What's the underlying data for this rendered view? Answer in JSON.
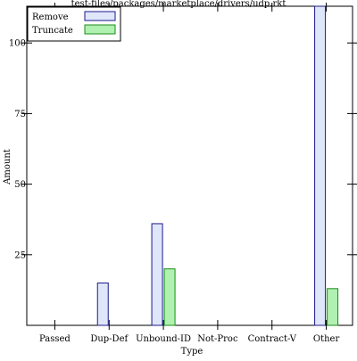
{
  "chart_data": {
    "type": "bar",
    "title": "test-files/packages/marketplace/drivers/udp.rkt",
    "xlabel": "Type",
    "ylabel": "Amount",
    "categories": [
      "Passed",
      "Dup-Def",
      "Unbound-ID",
      "Not-Proc",
      "Contract-V",
      "Other"
    ],
    "series": [
      {
        "name": "Remove",
        "values": [
          0,
          15,
          36,
          0,
          0,
          113
        ],
        "color": "#e0e6fa",
        "stroke": "#1a1a8c"
      },
      {
        "name": "Truncate",
        "values": [
          0,
          0,
          20,
          0,
          0,
          13
        ],
        "color": "#b0f0b0",
        "stroke": "#1a8c1a"
      }
    ],
    "yticks": [
      25,
      50,
      75,
      100
    ],
    "ylim": [
      0,
      113
    ],
    "legend_position": "top-left",
    "grid": false
  }
}
